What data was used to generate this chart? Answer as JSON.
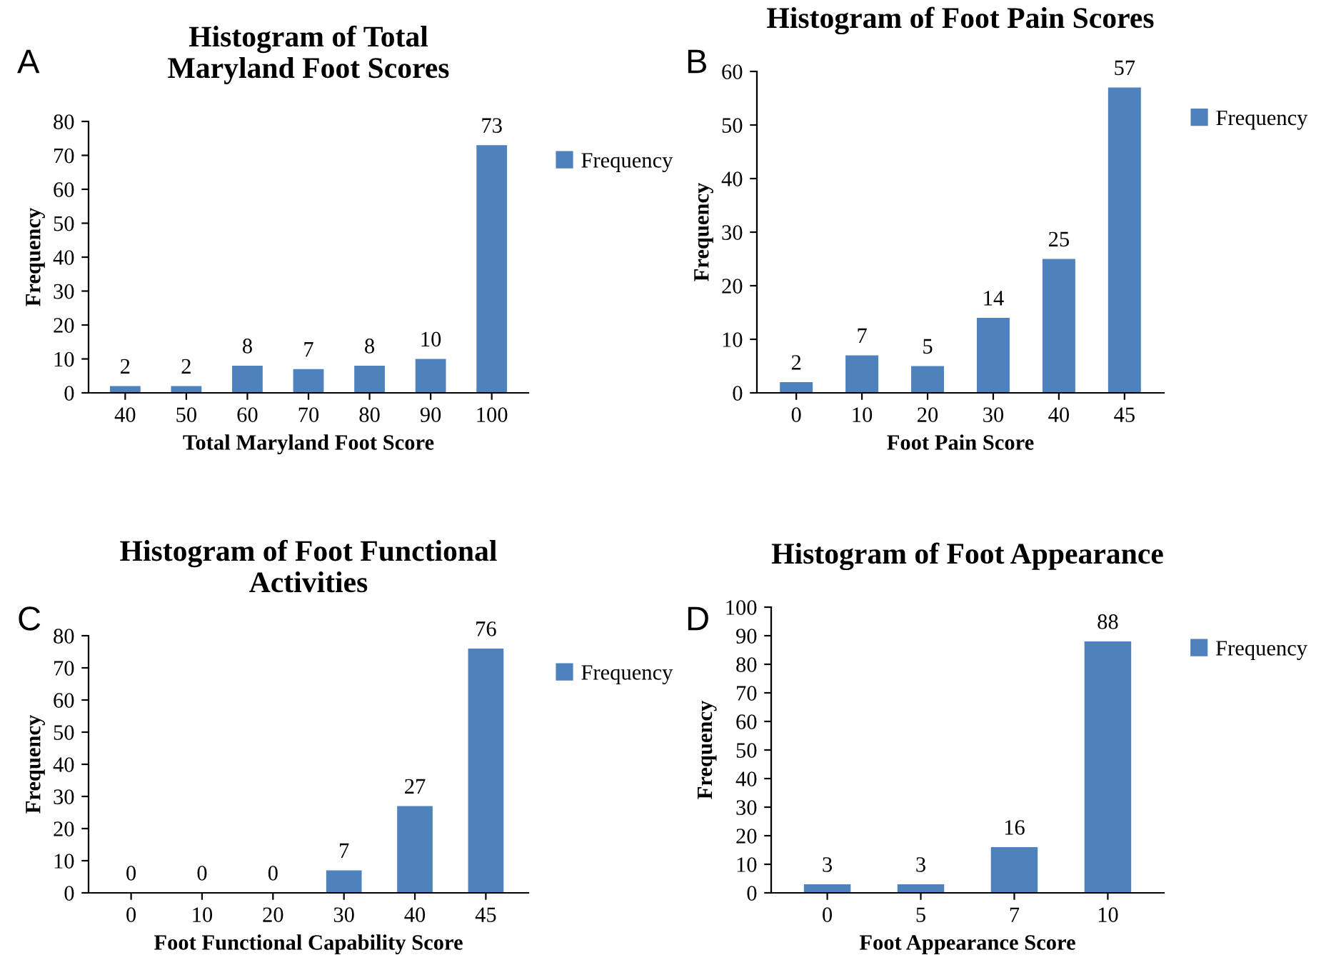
{
  "chart_data": [
    {
      "type": "bar",
      "title": "Histogram of Total\nMaryland Foot Scores",
      "xlabel": "Total Maryland Foot Score",
      "ylabel": "Frequency",
      "categories": [
        "40",
        "50",
        "60",
        "70",
        "80",
        "90",
        "100"
      ],
      "series": [
        {
          "name": "Frequency",
          "color": "#4f81bd",
          "values": [
            2,
            2,
            8,
            7,
            8,
            10,
            73
          ]
        }
      ],
      "ylim": [
        0,
        80
      ],
      "yticks": [
        0,
        10,
        20,
        30,
        40,
        50,
        60,
        70,
        80
      ],
      "data_labels": true,
      "legend": "right",
      "grid": false,
      "annotations": [
        "A"
      ]
    },
    {
      "type": "bar",
      "title": "Histogram of Foot Pain Scores",
      "xlabel": "Foot Pain Score",
      "ylabel": "Frequency",
      "categories": [
        "0",
        "10",
        "20",
        "30",
        "40",
        "45"
      ],
      "series": [
        {
          "name": "Frequency",
          "color": "#4f81bd",
          "values": [
            2,
            7,
            5,
            14,
            25,
            57
          ]
        }
      ],
      "ylim": [
        0,
        60
      ],
      "yticks": [
        0,
        10,
        20,
        30,
        40,
        50,
        60
      ],
      "data_labels": true,
      "legend": "right",
      "grid": false,
      "annotations": [
        "B"
      ]
    },
    {
      "type": "bar",
      "title": "Histogram of Foot Functional\nActivities",
      "xlabel": "Foot Functional Capability Score",
      "ylabel": "Frequency",
      "categories": [
        "0",
        "10",
        "20",
        "30",
        "40",
        "45"
      ],
      "series": [
        {
          "name": "Frequency",
          "color": "#4f81bd",
          "values": [
            0,
            0,
            0,
            7,
            27,
            76
          ]
        }
      ],
      "ylim": [
        0,
        80
      ],
      "yticks": [
        0,
        10,
        20,
        30,
        40,
        50,
        60,
        70,
        80
      ],
      "data_labels": true,
      "legend": "right",
      "grid": false,
      "annotations": [
        "C"
      ]
    },
    {
      "type": "bar",
      "title": "Histogram of Foot Appearance",
      "xlabel": "Foot Appearance Score",
      "ylabel": "Frequency",
      "categories": [
        "0",
        "5",
        "7",
        "10"
      ],
      "series": [
        {
          "name": "Frequency",
          "color": "#4f81bd",
          "values": [
            3,
            3,
            16,
            88
          ]
        }
      ],
      "ylim": [
        0,
        100
      ],
      "yticks": [
        0,
        10,
        20,
        30,
        40,
        50,
        60,
        70,
        80,
        90,
        100
      ],
      "data_labels": true,
      "legend": "right",
      "grid": false,
      "annotations": [
        "D"
      ]
    }
  ]
}
